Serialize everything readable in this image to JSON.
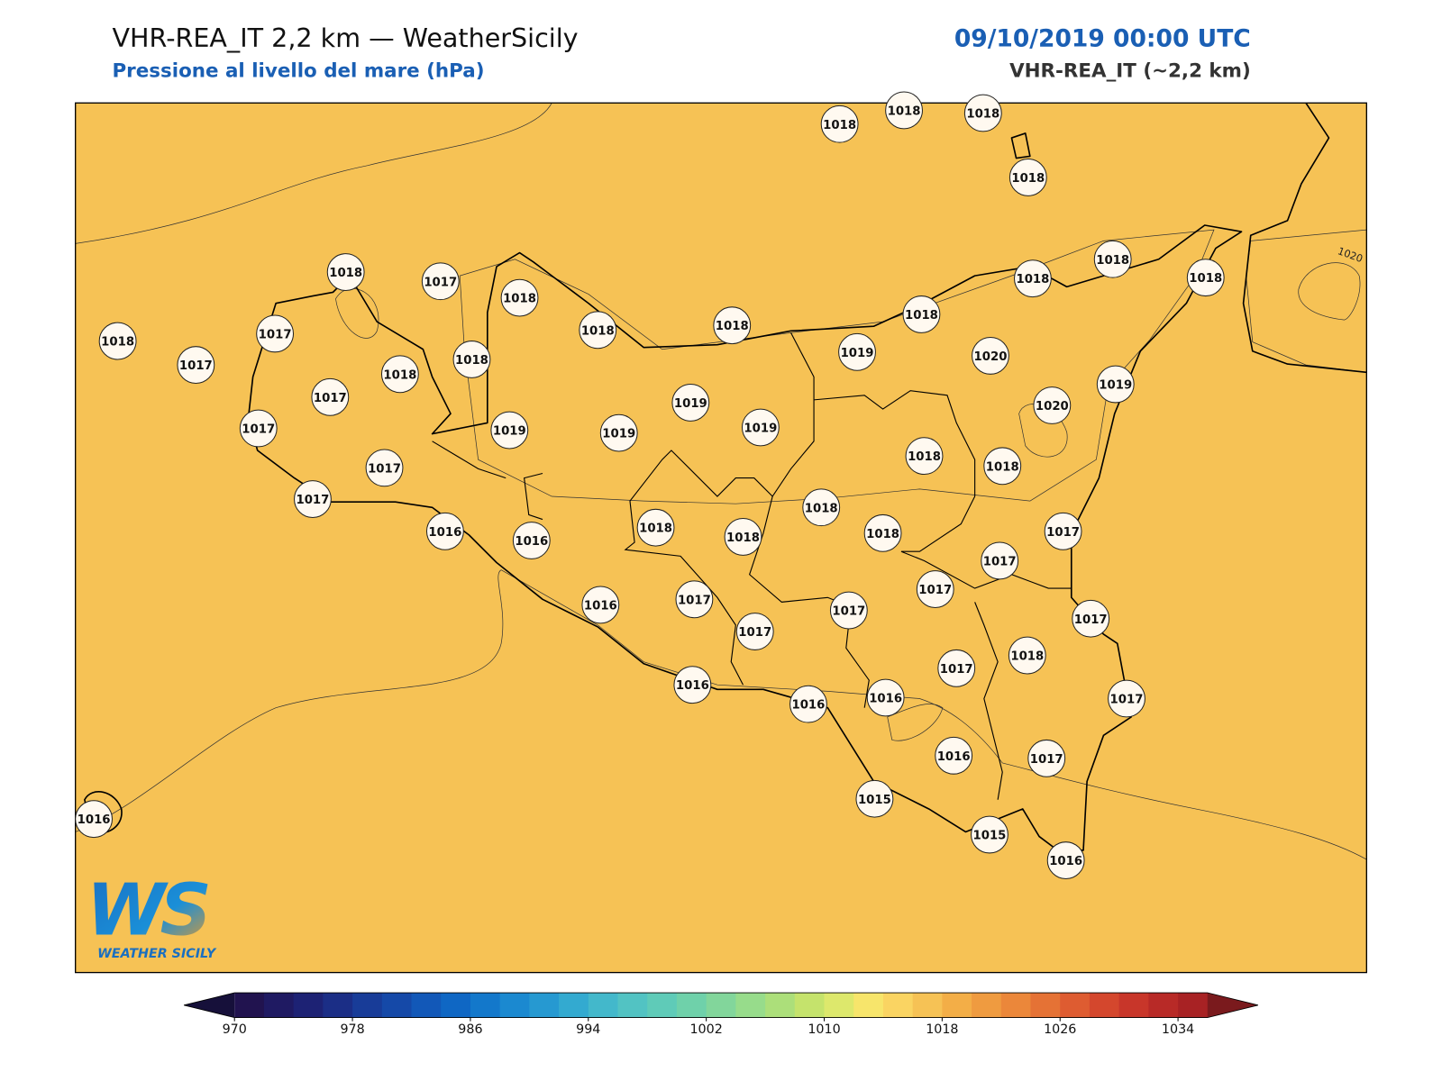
{
  "header": {
    "title": "VHR-REA_IT 2,2 km — WeatherSicily",
    "subtitle": "Pressione al livello del mare (hPa)",
    "datetime": "09/10/2019 00:00 UTC",
    "model": "VHR-REA_IT (~2,2 km)"
  },
  "stations": {
    "values": [
      1018,
      1018,
      1018,
      1018,
      1018,
      1017,
      1018,
      1018,
      1018,
      1018,
      1018,
      1017,
      1018,
      1018,
      1018,
      1017,
      1018,
      1018,
      1019,
      1020,
      1019,
      1017,
      1019,
      1020,
      1017,
      1019,
      1019,
      1019,
      1018,
      1018,
      1017,
      1017,
      1018,
      1016,
      1016,
      1018,
      1018,
      1018,
      1017,
      1017,
      1017,
      1016,
      1017,
      1017,
      1017,
      1017,
      1018,
      1017,
      1016,
      1016,
      1016,
      1017,
      1016,
      1017,
      1016,
      1015,
      1015,
      1016
    ]
  },
  "contour_label": "1020",
  "colorbar": {
    "lim": [
      970,
      1036
    ],
    "ticks": [
      970,
      978,
      986,
      994,
      1002,
      1010,
      1018,
      1026,
      1034
    ],
    "colors": [
      "#21134f",
      "#1f1a62",
      "#1d2274",
      "#1b2e86",
      "#183c98",
      "#1549a8",
      "#1258b8",
      "#0f67c4",
      "#1378cb",
      "#1b89d0",
      "#2699d1",
      "#33aad0",
      "#43b8cb",
      "#52c3c3",
      "#5fcbb8",
      "#6fd1aa",
      "#82d69b",
      "#97dc8b",
      "#acdf7a",
      "#c5e36c",
      "#dde86c",
      "#f7e56b",
      "#fad462",
      "#f6c255",
      "#f3ae47",
      "#ef9b40",
      "#eb873a",
      "#e57235",
      "#de5c31",
      "#d4472d",
      "#c8362a",
      "#b82a27",
      "#a82224"
    ],
    "under_color": "#16103a",
    "over_color": "#7a1a1d"
  },
  "logo": {
    "text": "WS",
    "caption": "WEATHER SICILY"
  }
}
